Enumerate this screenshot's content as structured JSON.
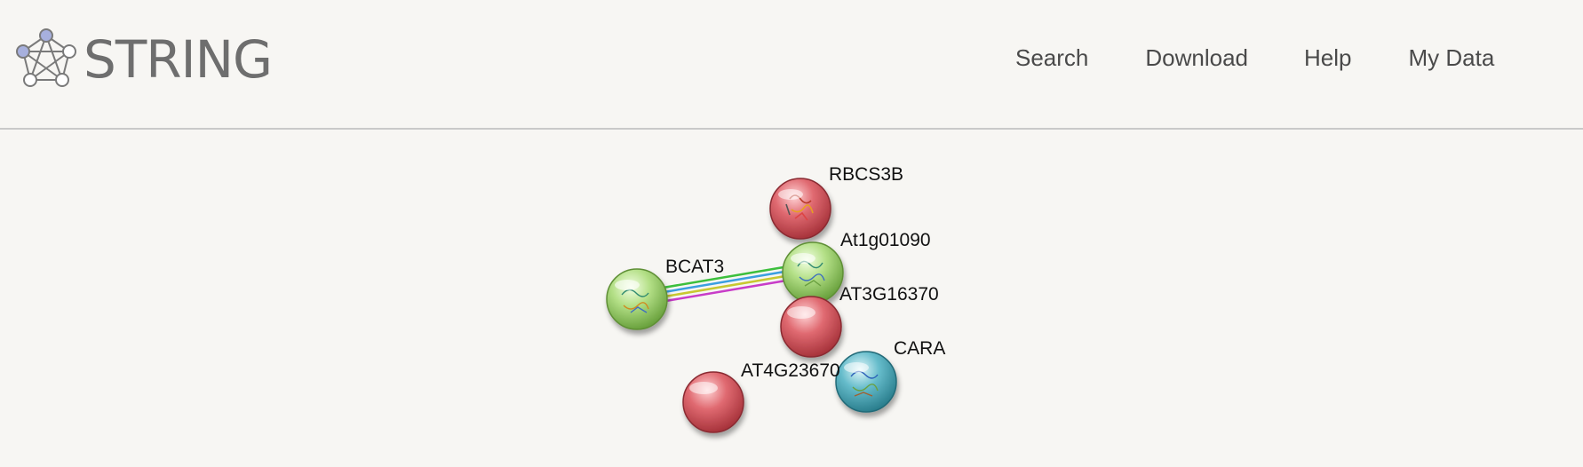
{
  "header": {
    "logo_text": "STRING",
    "logo_icon": "network-graph-icon"
  },
  "nav": {
    "items": [
      {
        "label": "Search"
      },
      {
        "label": "Download"
      },
      {
        "label": "Help"
      },
      {
        "label": "My Data"
      }
    ]
  },
  "network": {
    "nodes": [
      {
        "id": "RBCS3B",
        "label": "RBCS3B",
        "color": "#d9545c",
        "has_structure": true
      },
      {
        "id": "At1g01090",
        "label": "At1g01090",
        "color": "#9fd36e",
        "has_structure": true
      },
      {
        "id": "BCAT3",
        "label": "BCAT3",
        "color": "#9fd36e",
        "has_structure": true
      },
      {
        "id": "AT3G16370",
        "label": "AT3G16370",
        "color": "#d9545c",
        "has_structure": false
      },
      {
        "id": "CARA",
        "label": "CARA",
        "color": "#3fa7b8",
        "has_structure": true
      },
      {
        "id": "AT4G23670",
        "label": "AT4G23670",
        "color": "#d9545c",
        "has_structure": false
      }
    ],
    "edges": [
      {
        "source": "BCAT3",
        "target": "At1g01090",
        "colors": [
          "#3cbf3c",
          "#3a9fe0",
          "#c8c830",
          "#c83cc8"
        ]
      }
    ]
  }
}
